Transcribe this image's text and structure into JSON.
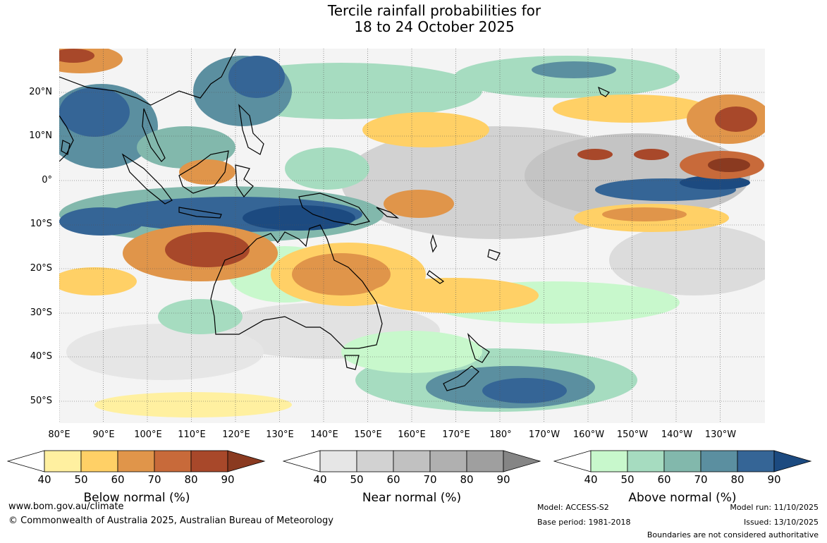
{
  "title": {
    "line1": "Tercile rainfall probabilities for",
    "line2": "18 to 24 October 2025"
  },
  "map": {
    "lat_labels": [
      "20°N",
      "10°N",
      "0°",
      "10°S",
      "20°S",
      "30°S",
      "40°S",
      "50°S"
    ],
    "lon_labels": [
      "80°E",
      "90°E",
      "100°E",
      "110°E",
      "120°E",
      "130°E",
      "140°E",
      "150°E",
      "160°E",
      "170°E",
      "180°",
      "170°W",
      "160°W",
      "150°W",
      "140°W",
      "130°W"
    ]
  },
  "legends": {
    "below": {
      "label": "Below normal (%)",
      "ticks": [
        "40",
        "50",
        "60",
        "70",
        "80",
        "90"
      ],
      "colors": [
        "#fff0a0",
        "#ffd066",
        "#e0954a",
        "#c86a3a",
        "#a8482a",
        "#8a3a20"
      ]
    },
    "near": {
      "label": "Near normal (%)",
      "ticks": [
        "40",
        "50",
        "60",
        "70",
        "80",
        "90"
      ],
      "colors": [
        "#e6e6e6",
        "#d2d2d2",
        "#c1c1c1",
        "#b0b0b0",
        "#9f9f9f",
        "#858585"
      ]
    },
    "above": {
      "label": "Above normal (%)",
      "ticks": [
        "40",
        "50",
        "60",
        "70",
        "80",
        "90"
      ],
      "colors": [
        "#c8f8cc",
        "#a6dcc0",
        "#82b8ac",
        "#5b8fa0",
        "#356596",
        "#1c4a80"
      ]
    }
  },
  "footer": {
    "website": "www.bom.gov.au/climate",
    "copyright": "© Commonwealth of Australia 2025, Australian Bureau of Meteorology",
    "model": "Model: ACCESS-S2",
    "base_period": "Base period: 1981-2018",
    "model_run": "Model run: 11/10/2025",
    "issued": "Issued: 13/10/2025",
    "disclaimer": "Boundaries are not considered authoritative"
  }
}
